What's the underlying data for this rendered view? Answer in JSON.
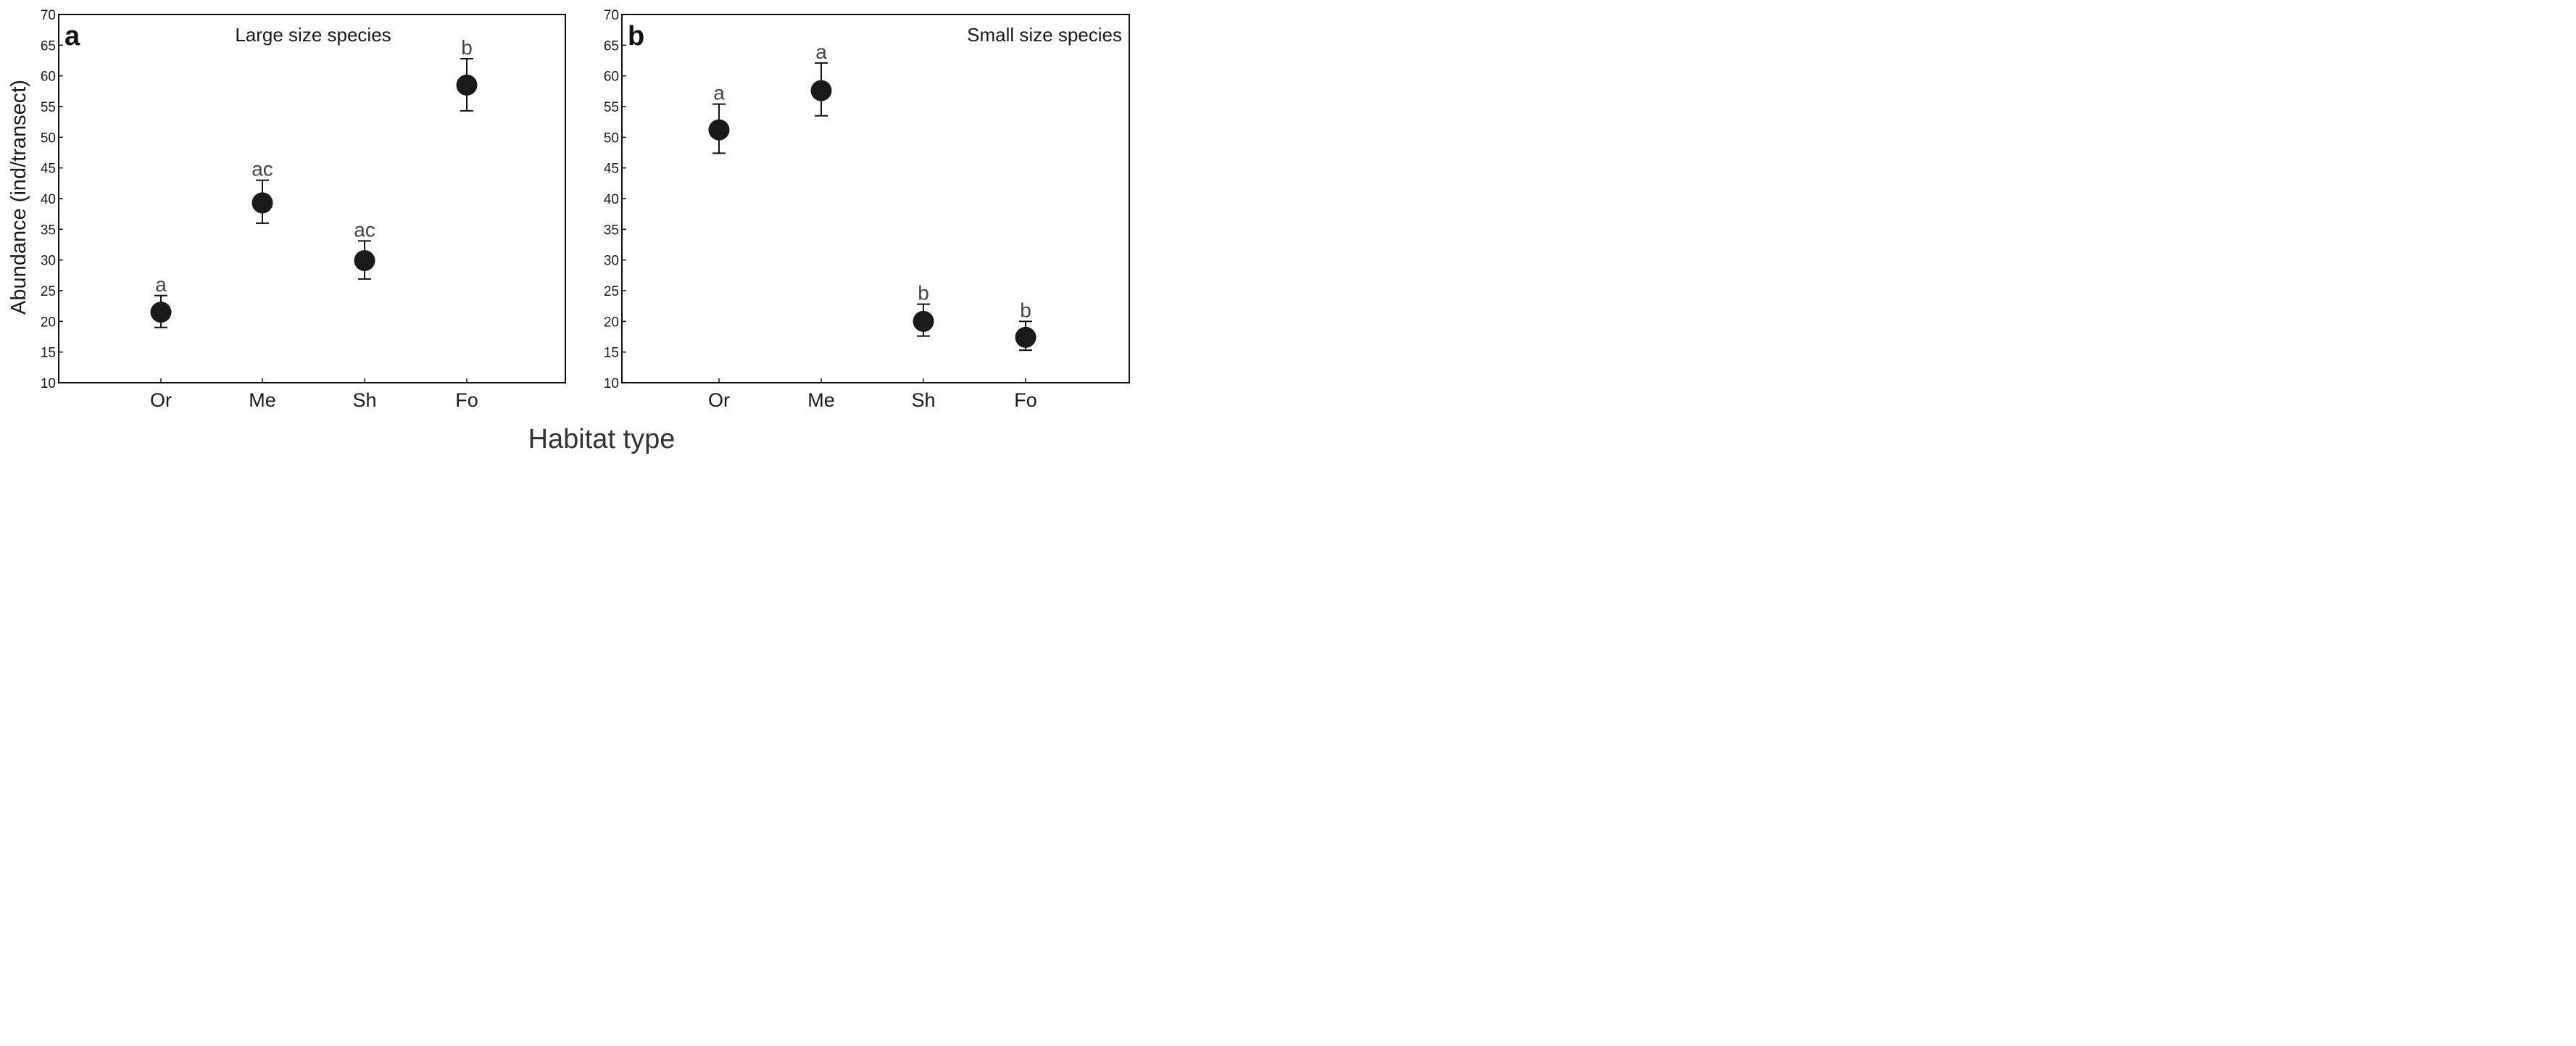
{
  "figure": {
    "ylabel": "Abundance (ind/transect)",
    "xlabel": "Habitat type"
  },
  "chart_data": [
    {
      "type": "scatter",
      "panel": "a",
      "title": "Large size species",
      "categories": [
        "Or",
        "Me",
        "Sh",
        "Fo"
      ],
      "values": [
        21.5,
        39.3,
        29.9,
        58.5
      ],
      "error_low": [
        19.0,
        36.0,
        26.9,
        54.3
      ],
      "error_high": [
        24.2,
        43.0,
        33.1,
        62.8
      ],
      "significance": [
        "a",
        "ac",
        "ac",
        "b"
      ],
      "ylim": [
        10,
        70
      ],
      "yticks": [
        10,
        15,
        20,
        25,
        30,
        35,
        40,
        45,
        50,
        55,
        60,
        65,
        70
      ],
      "ylabel": "Abundance (ind/transect)",
      "xlabel": "Habitat type"
    },
    {
      "type": "scatter",
      "panel": "b",
      "title": "Small size species",
      "categories": [
        "Or",
        "Me",
        "Sh",
        "Fo"
      ],
      "values": [
        51.2,
        57.6,
        20.0,
        17.4
      ],
      "error_low": [
        47.4,
        53.5,
        17.6,
        15.3
      ],
      "error_high": [
        55.4,
        62.1,
        22.8,
        20.0
      ],
      "significance": [
        "a",
        "a",
        "b",
        "b"
      ],
      "ylim": [
        10,
        70
      ],
      "yticks": [
        10,
        15,
        20,
        25,
        30,
        35,
        40,
        45,
        50,
        55,
        60,
        65,
        70
      ],
      "ylabel": "",
      "xlabel": "Habitat type"
    }
  ]
}
